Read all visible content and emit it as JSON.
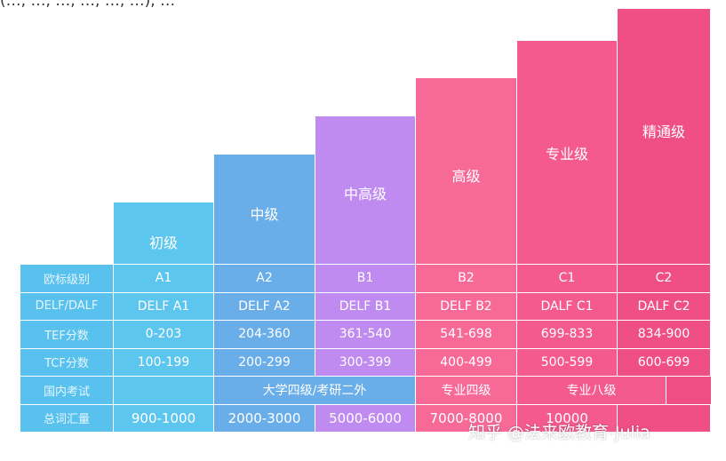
{
  "top_text": "(…, …, …, …, …, …), …",
  "levels": [
    {
      "label": "初级",
      "color": "#5dc6ee"
    },
    {
      "label": "中级",
      "color": "#6aaee9"
    },
    {
      "label": "中高级",
      "color": "#bf8bf0"
    },
    {
      "label": "高级",
      "color": "#f76a98"
    },
    {
      "label": "专业级",
      "color": "#f45a8d"
    },
    {
      "label": "精通级",
      "color": "#f04f85"
    }
  ],
  "row_headers": {
    "color": "#58c1ee",
    "items": [
      "欧标级别",
      "DELF/DALF",
      "TEF分数",
      "TCF分数",
      "国内考试",
      "总词汇量"
    ]
  },
  "rows": {
    "cefr": [
      "A1",
      "A2",
      "B1",
      "B2",
      "C1",
      "C2"
    ],
    "delf": [
      "DELF A1",
      "DELF A2",
      "DELF B1",
      "DELF B2",
      "DALF C1",
      "DALF C2"
    ],
    "tef": [
      "0-203",
      "204-360",
      "361-540",
      "541-698",
      "699-833",
      "834-900"
    ],
    "tcf": [
      "100-199",
      "200-299",
      "300-399",
      "400-499",
      "500-599",
      "600-699"
    ],
    "domestic": {
      "a1": "",
      "cet_kaoyan": "大学四级/考研二外",
      "tem4": "专业四级",
      "tem8": "专业八级",
      "last": ""
    },
    "vocab": [
      "900-1000",
      "2000-3000",
      "5000-6000",
      "7000-8000",
      "10000",
      ""
    ]
  },
  "watermark": "知乎 @法来欧教育-Julia"
}
